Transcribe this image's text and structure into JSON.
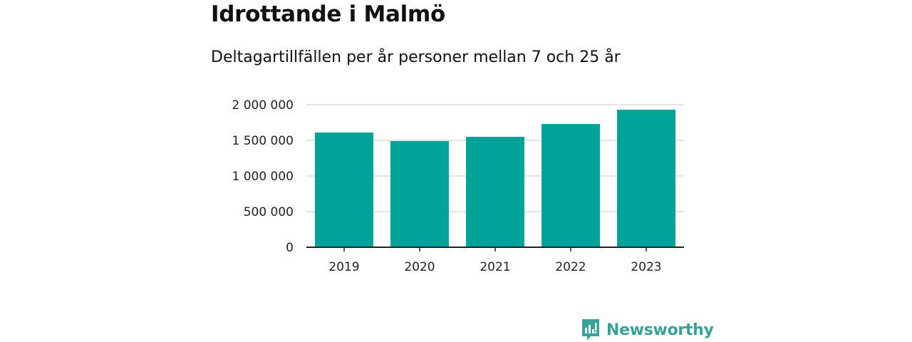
{
  "title": "Idrottande i Malmö",
  "subtitle": "Deltagartillfällen per år personer mellan 7 och 25 år",
  "brand": "Newsworthy",
  "colors": {
    "bar": "#00a398",
    "grid": "#dcdcdc",
    "axis": "#222222",
    "brand": "#3aa198"
  },
  "icons": {
    "brand_logo": "newsworthy-logo-icon"
  },
  "chart_data": {
    "type": "bar",
    "categories": [
      "2019",
      "2020",
      "2021",
      "2022",
      "2023"
    ],
    "values": [
      1610000,
      1490000,
      1550000,
      1730000,
      1930000
    ],
    "ylim": [
      0,
      2000000
    ],
    "yticks": [
      0,
      500000,
      1000000,
      1500000,
      2000000
    ],
    "ytick_labels": [
      "0",
      "500 000",
      "1 000 000",
      "1 500 000",
      "2 000 000"
    ],
    "grid": true,
    "legend": "none",
    "xlabel": "",
    "ylabel": ""
  }
}
